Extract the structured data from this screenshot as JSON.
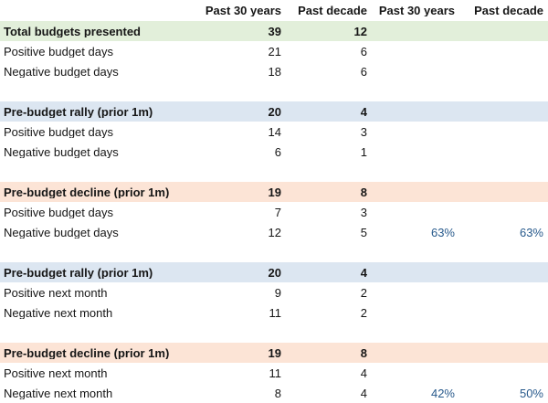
{
  "colors": {
    "band_green": "#e2efda",
    "band_blue": "#dce6f1",
    "band_peach": "#fce4d6",
    "percent_text": "#285a8c",
    "text": "#161616"
  },
  "chart_data": {
    "type": "table",
    "columns": [
      "Past 30 years",
      "Past decade",
      "Past 30 years",
      "Past decade"
    ],
    "sections": [
      {
        "band": "band_green",
        "title": "Total budgets presented",
        "title_values": [
          "39",
          "12",
          "",
          ""
        ],
        "rows": [
          {
            "label": "Positive budget days",
            "values": [
              "21",
              "6",
              "",
              ""
            ]
          },
          {
            "label": "Negative budget days",
            "values": [
              "18",
              "6",
              "",
              ""
            ]
          }
        ]
      },
      {
        "band": "band_blue",
        "title": "Pre-budget rally (prior 1m)",
        "title_values": [
          "20",
          "4",
          "",
          ""
        ],
        "rows": [
          {
            "label": "Positive budget days",
            "values": [
              "14",
              "3",
              "",
              ""
            ]
          },
          {
            "label": "Negative budget days",
            "values": [
              "6",
              "1",
              "",
              ""
            ]
          }
        ]
      },
      {
        "band": "band_peach",
        "title": "Pre-budget decline (prior 1m)",
        "title_values": [
          "19",
          "8",
          "",
          ""
        ],
        "rows": [
          {
            "label": "Positive budget days",
            "values": [
              "7",
              "3",
              "",
              ""
            ]
          },
          {
            "label": "Negative budget days",
            "values": [
              "12",
              "5",
              "63%",
              "63%"
            ]
          }
        ]
      },
      {
        "band": "band_blue",
        "title": "Pre-budget rally (prior 1m)",
        "title_values": [
          "20",
          "4",
          "",
          ""
        ],
        "rows": [
          {
            "label": "Positive next month",
            "values": [
              "9",
              "2",
              "",
              ""
            ]
          },
          {
            "label": "Negative next month",
            "values": [
              "11",
              "2",
              "",
              ""
            ]
          }
        ]
      },
      {
        "band": "band_peach",
        "title": "Pre-budget decline (prior 1m)",
        "title_values": [
          "19",
          "8",
          "",
          ""
        ],
        "rows": [
          {
            "label": "Positive next month",
            "values": [
              "11",
              "4",
              "",
              ""
            ]
          },
          {
            "label": "Negative next month",
            "values": [
              "8",
              "4",
              "42%",
              "50%"
            ]
          }
        ]
      }
    ]
  }
}
